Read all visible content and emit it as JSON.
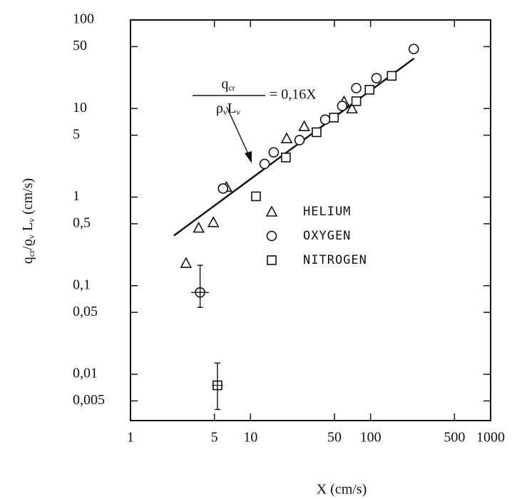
{
  "chart_data": {
    "type": "scatter",
    "xlabel": "X (cm/s)",
    "ylabel_parts": [
      {
        "text": "q"
      },
      {
        "text": "cr",
        "sub": true
      },
      {
        "text": "/ϱ"
      },
      {
        "text": "v",
        "sub": true
      },
      {
        "text": " L"
      },
      {
        "text": "v",
        "sub": true
      },
      {
        "text": " (cm/s)"
      }
    ],
    "log_x": true,
    "log_y": true,
    "xlim": [
      1,
      1000
    ],
    "ylim": [
      0.003,
      100
    ],
    "xticks": [
      1,
      5,
      10,
      50,
      100,
      500,
      1000
    ],
    "yticks": [
      100,
      50,
      10,
      5,
      1,
      {
        "value": 0.5,
        "label": "0,5"
      },
      {
        "value": 0.1,
        "label": "0,1"
      },
      {
        "value": 0.05,
        "label": "0,05"
      },
      {
        "value": 0.01,
        "label": "0,01"
      },
      {
        "value": 0.005,
        "label": "0,005"
      }
    ],
    "series": [
      {
        "name": "HELIUM",
        "marker": "triangle",
        "color": "#111111",
        "x": [
          2.9,
          3.7,
          4.9,
          6.3,
          20,
          28,
          60,
          70
        ],
        "values": [
          0.18,
          0.45,
          0.52,
          1.3,
          4.6,
          6.3,
          12,
          10
        ]
      },
      {
        "name": "OXYGEN",
        "marker": "circle",
        "color": "#111111",
        "x": [
          5.9,
          13.1,
          15.6,
          25.6,
          41.9,
          58,
          76,
          112,
          229
        ],
        "values": [
          1.25,
          2.37,
          3.2,
          4.4,
          7.5,
          10.7,
          17,
          22,
          47
        ]
      },
      {
        "name": "NITROGEN",
        "marker": "square",
        "color": "#111111",
        "x": [
          11.1,
          19.7,
          35.5,
          49.5,
          76,
          98,
          150
        ],
        "values": [
          1.02,
          2.8,
          5.4,
          7.9,
          12.1,
          16.3,
          23.4
        ]
      }
    ],
    "error_points": [
      {
        "marker": "circle",
        "x": 3.8,
        "y": 0.084,
        "y_low": 0.057,
        "y_high": 0.17,
        "x_low": 3.2,
        "x_high": 4.5
      },
      {
        "marker": "square",
        "x": 5.3,
        "y": 0.0075,
        "y_low": 0.004,
        "y_high": 0.0134
      }
    ],
    "fit": {
      "coef": 0.16,
      "xlim": [
        2.3,
        230
      ]
    },
    "annotation": {
      "numerator": [
        {
          "text": "q"
        },
        {
          "text": "cr",
          "sub": true
        }
      ],
      "denominator": [
        {
          "text": "ρ"
        },
        {
          "text": "v",
          "sub": true
        },
        {
          "text": "L"
        },
        {
          "text": "v",
          "sub": true
        }
      ],
      "rhs": "= 0,16X"
    }
  }
}
